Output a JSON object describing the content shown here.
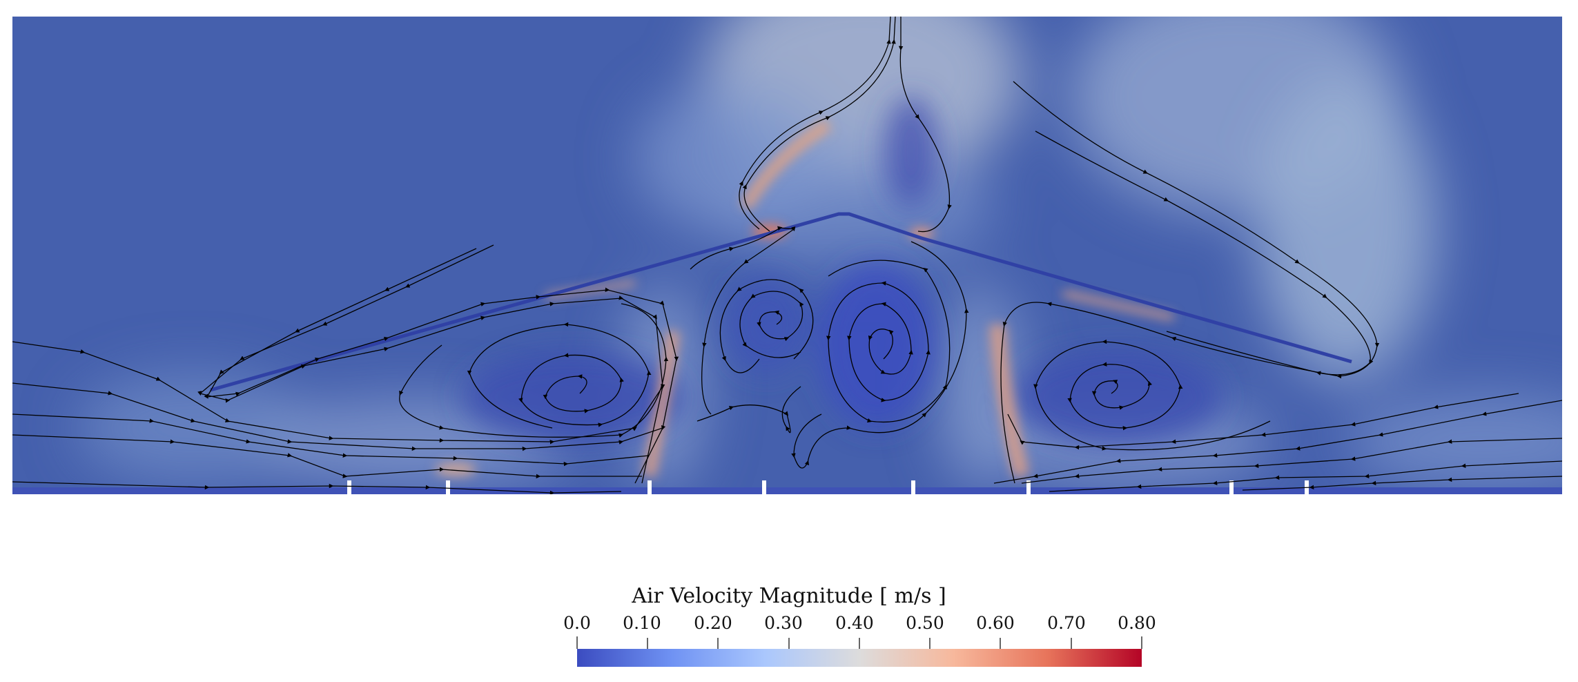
{
  "colorbar": {
    "title": "Air Velocity Magnitude [ m/s ]",
    "ticks": [
      "0.0",
      "0.10",
      "0.20",
      "0.30",
      "0.40",
      "0.50",
      "0.60",
      "0.70",
      "0.80"
    ],
    "range": [
      0.0,
      0.8
    ],
    "colormap": [
      "#3b4cc0",
      "#6f92f3",
      "#aac7fd",
      "#dddcdc",
      "#f7b89c",
      "#e7745b",
      "#b40426"
    ]
  },
  "colors": {
    "background_flow": "#4660b0",
    "streamline": "#000000"
  }
}
